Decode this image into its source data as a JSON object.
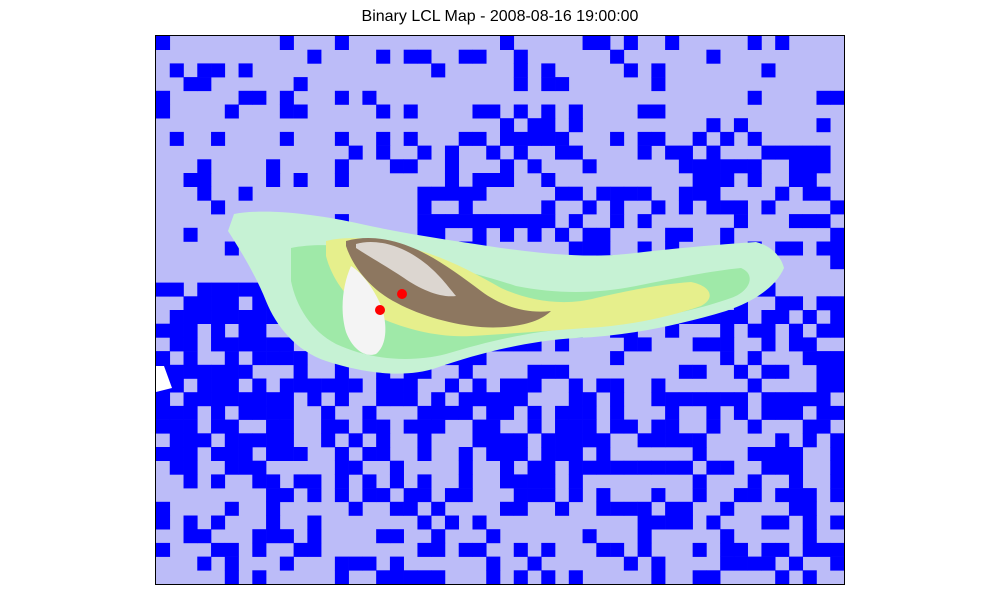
{
  "title": "Binary LCL Map - 2008-08-16 19:00:00",
  "colors": {
    "lcl_false": "#bcbcf8",
    "lcl_true": "#0000ff",
    "station_marker": "#ff0000",
    "terrain_low": "#a8efc0",
    "terrain_mid": "#e8f08a",
    "terrain_high": "#8a7458",
    "terrain_peak": "#f2f2f2"
  },
  "map": {
    "legend": "none",
    "grid_columns": 50,
    "grid_rows": 40,
    "stations_count": 2
  }
}
